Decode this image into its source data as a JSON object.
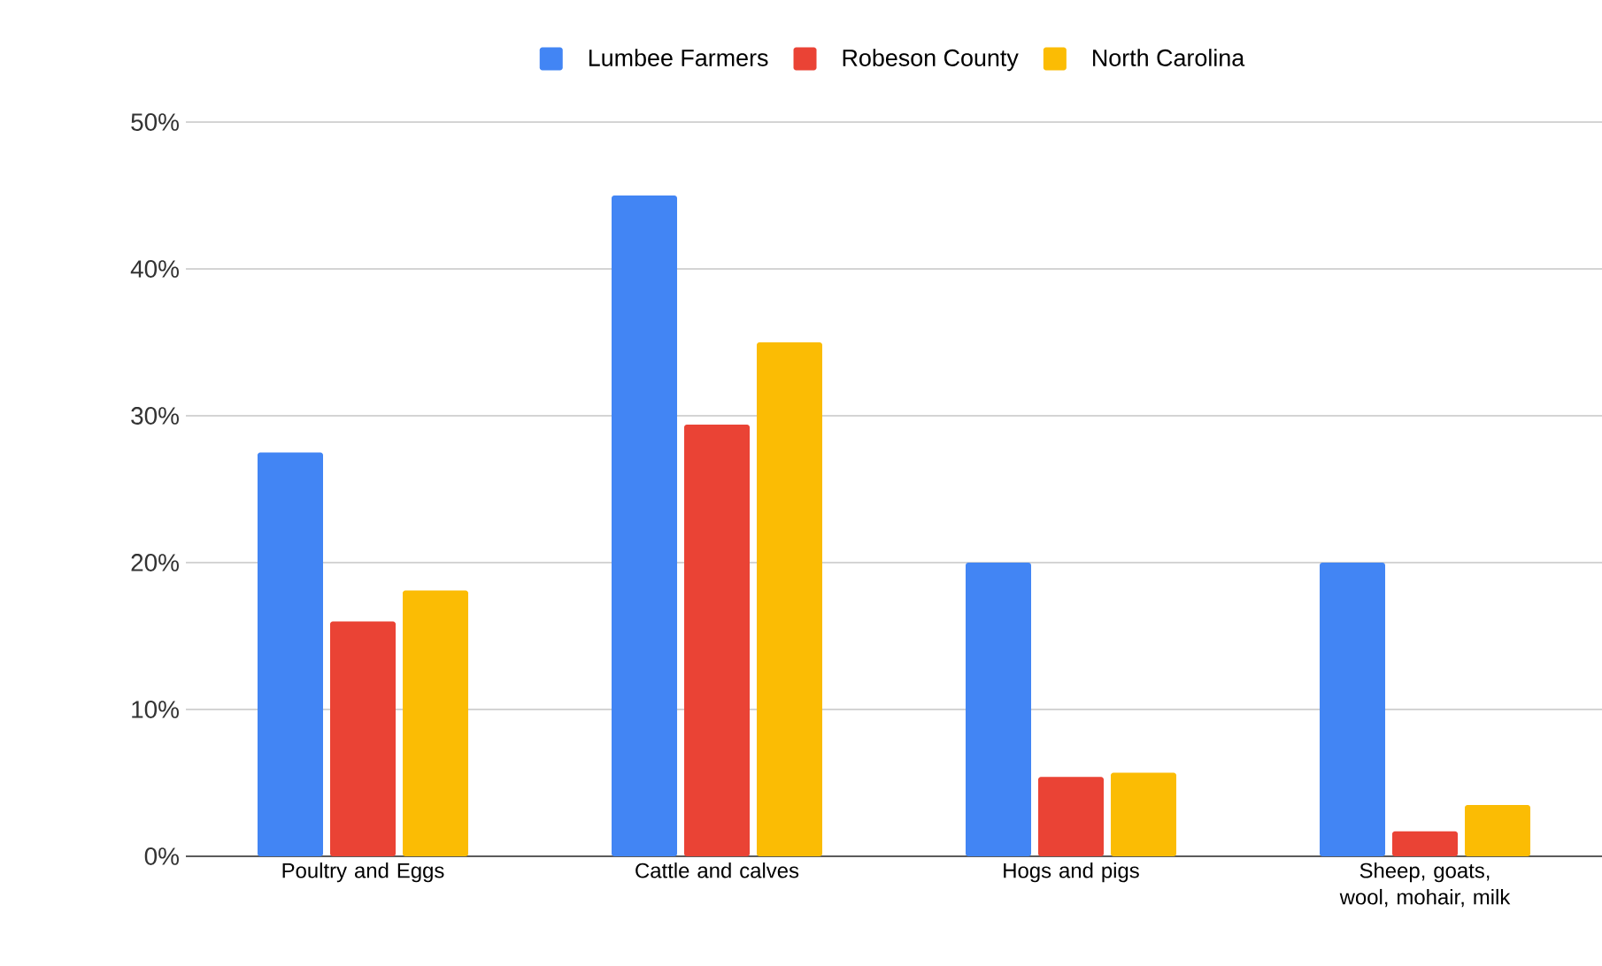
{
  "chart_data": {
    "type": "bar",
    "categories": [
      "Poultry and Eggs",
      "Cattle and calves",
      "Hogs and pigs",
      "Sheep, goats, wool, mohair, milk"
    ],
    "series": [
      {
        "name": "Lumbee Farmers",
        "color": "#4285f4",
        "values": [
          27.5,
          45,
          20,
          20
        ]
      },
      {
        "name": "Robeson County",
        "color": "#ea4335",
        "values": [
          16,
          29.4,
          5.4,
          1.7
        ]
      },
      {
        "name": "North Carolina",
        "color": "#fbbc04",
        "values": [
          18.1,
          35,
          5.7,
          3.5
        ]
      }
    ],
    "ylim": [
      0,
      50
    ],
    "yticks": [
      {
        "value": 0,
        "label": "0%"
      },
      {
        "value": 10,
        "label": "10%"
      },
      {
        "value": 20,
        "label": "20%"
      },
      {
        "value": 30,
        "label": "30%"
      },
      {
        "value": 40,
        "label": "40%"
      },
      {
        "value": 50,
        "label": "50%"
      }
    ],
    "grid": "y",
    "legend": "top"
  }
}
